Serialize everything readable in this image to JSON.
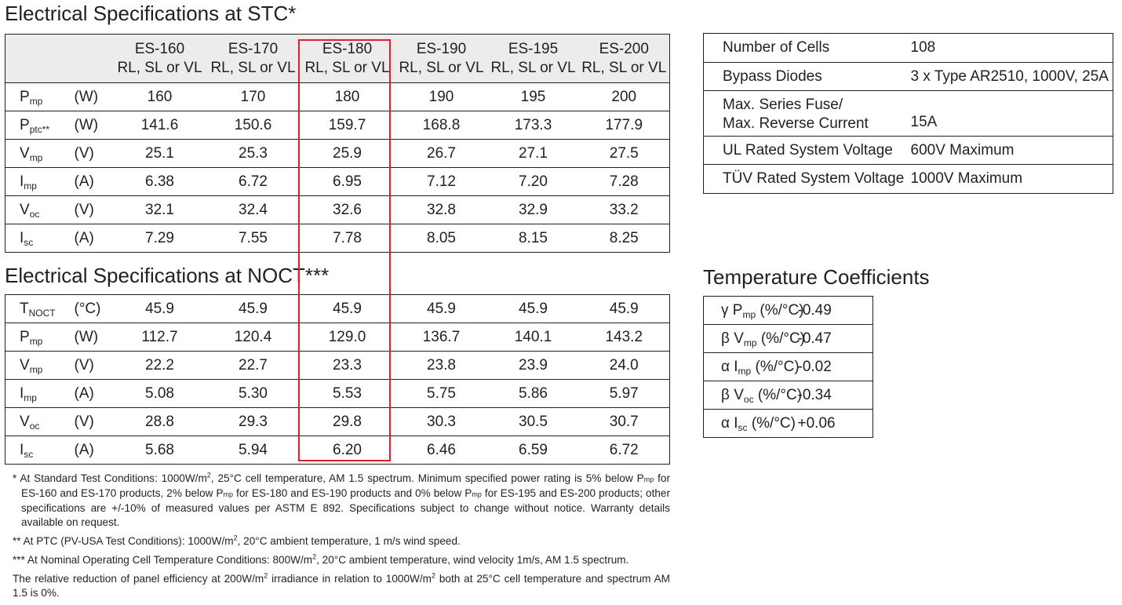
{
  "stc": {
    "title": "Electrical Specifications at STC*",
    "columns": [
      {
        "model": "ES-160",
        "variants": "RL, SL or VL"
      },
      {
        "model": "ES-170",
        "variants": "RL, SL or VL"
      },
      {
        "model": "ES-180",
        "variants": "RL, SL or VL"
      },
      {
        "model": "ES-190",
        "variants": "RL, SL or VL"
      },
      {
        "model": "ES-195",
        "variants": "RL, SL or VL"
      },
      {
        "model": "ES-200",
        "variants": "RL, SL or VL"
      }
    ],
    "rows": [
      {
        "sym": "P",
        "sub": "mp",
        "unit": "(W)",
        "values": [
          "160",
          "170",
          "180",
          "190",
          "195",
          "200"
        ]
      },
      {
        "sym": "P",
        "sub": "ptc**",
        "unit": "(W)",
        "values": [
          "141.6",
          "150.6",
          "159.7",
          "168.8",
          "173.3",
          "177.9"
        ]
      },
      {
        "sym": "V",
        "sub": "mp",
        "unit": "(V)",
        "values": [
          "25.1",
          "25.3",
          "25.9",
          "26.7",
          "27.1",
          "27.5"
        ]
      },
      {
        "sym": "I",
        "sub": "mp",
        "unit": "(A)",
        "values": [
          "6.38",
          "6.72",
          "6.95",
          "7.12",
          "7.20",
          "7.28"
        ]
      },
      {
        "sym": "V",
        "sub": "oc",
        "unit": "(V)",
        "values": [
          "32.1",
          "32.4",
          "32.6",
          "32.8",
          "32.9",
          "33.2"
        ]
      },
      {
        "sym": "I",
        "sub": "sc",
        "unit": "(A)",
        "values": [
          "7.29",
          "7.55",
          "7.78",
          "8.05",
          "8.15",
          "8.25"
        ]
      }
    ]
  },
  "noct": {
    "title": "Electrical Specifications at NOCT***",
    "rows": [
      {
        "sym": "T",
        "sub": "NOCT",
        "unit": "(°C)",
        "values": [
          "45.9",
          "45.9",
          "45.9",
          "45.9",
          "45.9",
          "45.9"
        ]
      },
      {
        "sym": "P",
        "sub": "mp",
        "unit": "(W)",
        "values": [
          "112.7",
          "120.4",
          "129.0",
          "136.7",
          "140.1",
          "143.2"
        ]
      },
      {
        "sym": "V",
        "sub": "mp",
        "unit": "(V)",
        "values": [
          "22.2",
          "22.7",
          "23.3",
          "23.8",
          "23.9",
          "24.0"
        ]
      },
      {
        "sym": "I",
        "sub": "mp",
        "unit": "(A)",
        "values": [
          "5.08",
          "5.30",
          "5.53",
          "5.75",
          "5.86",
          "5.97"
        ]
      },
      {
        "sym": "V",
        "sub": "oc",
        "unit": "(V)",
        "values": [
          "28.8",
          "29.3",
          "29.8",
          "30.3",
          "30.5",
          "30.7"
        ]
      },
      {
        "sym": "I",
        "sub": "sc",
        "unit": "(A)",
        "values": [
          "5.68",
          "5.94",
          "6.20",
          "6.46",
          "6.59",
          "6.72"
        ]
      }
    ]
  },
  "highlight_color": "#e31e24",
  "info": [
    {
      "label": "Number of Cells",
      "value": "108"
    },
    {
      "label": "Bypass Diodes",
      "value": "3 x Type AR2510, 1000V, 25A"
    },
    {
      "label": "Max. Series Fuse/",
      "label2": "Max. Reverse Current",
      "value": "15A"
    },
    {
      "label": "UL Rated System Voltage",
      "value": "600V Maximum"
    },
    {
      "label": "TÜV Rated System Voltage",
      "value": "1000V Maximum"
    }
  ],
  "temp": {
    "title": "Temperature Coefficients",
    "rows": [
      {
        "greek": "γ",
        "sym": "P",
        "sub": "mp",
        "unit": "(%/°C)",
        "value": "-0.49"
      },
      {
        "greek": "β",
        "sym": "V",
        "sub": "mp",
        "unit": "(%/°C)",
        "value": "-0.47"
      },
      {
        "greek": "α",
        "sym": "I",
        "sub": "mp",
        "unit": "(%/°C)",
        "value": "-0.02"
      },
      {
        "greek": "β",
        "sym": "V",
        "sub": "oc",
        "unit": "(%/°C)",
        "value": "-0.34"
      },
      {
        "greek": "α",
        "sym": "I",
        "sub": "sc",
        "unit": "(%/°C)",
        "value": "+0.06"
      }
    ]
  },
  "footnotes": {
    "f1_a": "* At Standard Test Conditions: 1000W/m",
    "f1_sup": "2",
    "f1_b": ", 25°C cell temperature, AM 1.5 spectrum. Minimum specified power rating is 5% below P",
    "f1_sub1": "mp",
    "f1_c": " for ES-160 and ES-170 products, 2% below P",
    "f1_sub2": "mp",
    "f1_d": " for ES-180 and ES-190 products and 0% below P",
    "f1_sub3": "mp",
    "f1_e": " for ES-195 and ES-200 products; other specifications are +/-10% of measured values per ASTM E 892. Specifications subject to change without notice. Warranty details available on request.",
    "f2_a": "** At PTC (PV-USA Test Conditions): 1000W/m",
    "f2_sup": "2",
    "f2_b": ", 20°C ambient temperature, 1 m/s wind speed.",
    "f3_a": "*** At Nominal Operating Cell Temperature Conditions: 800W/m",
    "f3_sup": "2",
    "f3_b": ", 20°C ambient temperature, wind velocity 1m/s, AM 1.5 spectrum.",
    "f4_a": "The relative reduction of panel efficiency at 200W/m",
    "f4_sup": "2",
    "f4_b": " irradiance in relation to 1000W/m",
    "f4_sup2": "2",
    "f4_c": " both at 25°C cell temperature and spectrum AM 1.5 is 0%."
  }
}
